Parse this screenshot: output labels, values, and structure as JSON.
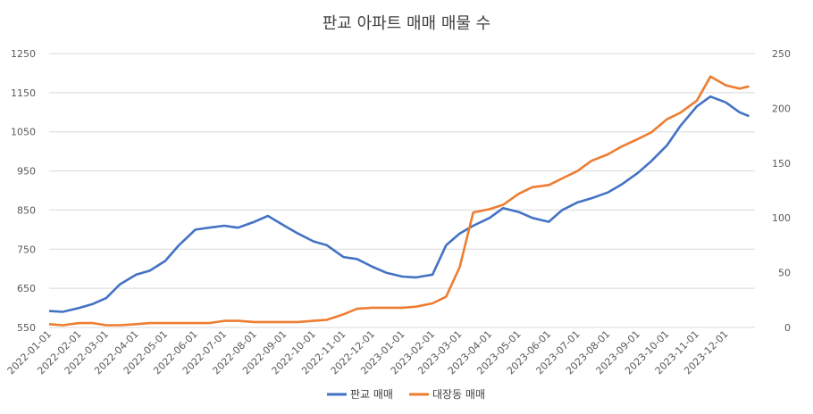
{
  "chart_data": {
    "type": "line",
    "title": "판교 아파트 매매 매물 수",
    "xlabel": "",
    "ylabel": "",
    "ylim_left": [
      550,
      1250
    ],
    "ylim_right": [
      0,
      250
    ],
    "y_ticks_left": [
      550,
      650,
      750,
      850,
      950,
      1050,
      1150,
      1250
    ],
    "y_ticks_right": [
      0,
      50,
      100,
      150,
      200,
      250
    ],
    "x_ticks": [
      "2022-01-01",
      "2022-02-01",
      "2022-03-01",
      "2022-04-01",
      "2022-05-01",
      "2022-06-01",
      "2022-07-01",
      "2022-08-01",
      "2022-09-01",
      "2022-10-01",
      "2022-11-01",
      "2022-12-01",
      "2023-01-01",
      "2023-02-01",
      "2023-03-01",
      "2023-04-01",
      "2023-05-01",
      "2023-06-01",
      "2023-07-01",
      "2023-08-01",
      "2023-09-01",
      "2023-10-01",
      "2023-11-01",
      "2023-12-01"
    ],
    "grid": true,
    "legend": "bottom",
    "series": [
      {
        "name": "판교 매매",
        "axis": "left",
        "color": "#4472c4",
        "x": [
          "2022-01-01",
          "2022-01-15",
          "2022-02-01",
          "2022-02-15",
          "2022-03-01",
          "2022-03-15",
          "2022-04-01",
          "2022-04-15",
          "2022-05-01",
          "2022-05-15",
          "2022-06-01",
          "2022-06-15",
          "2022-07-01",
          "2022-07-15",
          "2022-08-01",
          "2022-08-15",
          "2022-09-01",
          "2022-09-15",
          "2022-10-01",
          "2022-10-15",
          "2022-11-01",
          "2022-11-15",
          "2022-12-01",
          "2022-12-15",
          "2023-01-01",
          "2023-01-15",
          "2023-02-01",
          "2023-02-15",
          "2023-03-01",
          "2023-03-15",
          "2023-04-01",
          "2023-04-15",
          "2023-05-01",
          "2023-05-15",
          "2023-06-01",
          "2023-06-15",
          "2023-07-01",
          "2023-07-15",
          "2023-08-01",
          "2023-08-15",
          "2023-09-01",
          "2023-09-15",
          "2023-10-01",
          "2023-10-15",
          "2023-11-01",
          "2023-11-15",
          "2023-12-01",
          "2023-12-15",
          "2023-12-25"
        ],
        "values": [
          592,
          590,
          600,
          610,
          625,
          660,
          685,
          695,
          720,
          760,
          800,
          805,
          810,
          805,
          820,
          835,
          810,
          790,
          770,
          760,
          730,
          725,
          705,
          690,
          680,
          678,
          685,
          760,
          790,
          810,
          830,
          855,
          845,
          830,
          820,
          850,
          870,
          880,
          895,
          915,
          945,
          975,
          1015,
          1065,
          1115,
          1140,
          1125,
          1100,
          1090
        ]
      },
      {
        "name": "대장동 매매",
        "axis": "right",
        "color": "#ed7d31",
        "x": [
          "2022-01-01",
          "2022-01-15",
          "2022-02-01",
          "2022-02-15",
          "2022-03-01",
          "2022-03-15",
          "2022-04-01",
          "2022-04-15",
          "2022-05-01",
          "2022-05-15",
          "2022-06-01",
          "2022-06-15",
          "2022-07-01",
          "2022-07-15",
          "2022-08-01",
          "2022-08-15",
          "2022-09-01",
          "2022-09-15",
          "2022-10-01",
          "2022-10-15",
          "2022-11-01",
          "2022-11-15",
          "2022-12-01",
          "2022-12-15",
          "2023-01-01",
          "2023-01-15",
          "2023-02-01",
          "2023-02-15",
          "2023-03-01",
          "2023-03-15",
          "2023-04-01",
          "2023-04-15",
          "2023-05-01",
          "2023-05-15",
          "2023-06-01",
          "2023-06-15",
          "2023-07-01",
          "2023-07-15",
          "2023-08-01",
          "2023-08-15",
          "2023-09-01",
          "2023-09-15",
          "2023-10-01",
          "2023-10-15",
          "2023-11-01",
          "2023-11-15",
          "2023-12-01",
          "2023-12-15",
          "2023-12-25"
        ],
        "values": [
          3,
          2,
          4,
          4,
          2,
          2,
          3,
          4,
          4,
          4,
          4,
          4,
          6,
          6,
          5,
          5,
          5,
          5,
          6,
          7,
          12,
          17,
          18,
          18,
          18,
          19,
          22,
          28,
          55,
          105,
          108,
          112,
          122,
          128,
          130,
          136,
          143,
          152,
          158,
          165,
          172,
          178,
          190,
          196,
          207,
          229,
          221,
          218,
          220
        ]
      }
    ]
  }
}
